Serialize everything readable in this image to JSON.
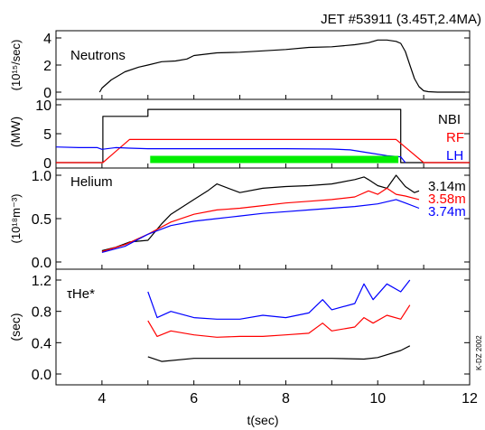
{
  "figure": {
    "title": "JET #53911 (3.45T,2.4MA)",
    "xlabel": "t(sec)",
    "credit": "K-DZ 2002"
  },
  "chart_data": [
    {
      "type": "line",
      "panel": "neutrons",
      "annotation": "Neutrons",
      "ylabel": "(10¹⁵/sec)",
      "xlim": [
        3,
        12
      ],
      "ylim": [
        0,
        4
      ],
      "yticks": [
        0,
        2,
        4
      ],
      "series": [
        {
          "color": "#000000",
          "x": [
            3.95,
            4.0,
            4.2,
            4.5,
            4.8,
            5.0,
            5.3,
            5.6,
            5.85,
            6.0,
            6.5,
            7.0,
            7.5,
            8.0,
            8.5,
            9.0,
            9.5,
            9.8,
            10.0,
            10.2,
            10.4,
            10.5,
            10.6,
            10.7,
            10.8,
            10.9,
            11.0,
            11.1,
            11.3,
            11.6,
            11.9
          ],
          "y": [
            0.0,
            0.3,
            0.9,
            1.5,
            1.85,
            2.0,
            2.25,
            2.3,
            2.45,
            2.7,
            2.9,
            2.95,
            3.05,
            3.15,
            3.3,
            3.35,
            3.5,
            3.65,
            3.85,
            3.85,
            3.75,
            3.6,
            3.0,
            2.0,
            1.0,
            0.4,
            0.1,
            0.03,
            0.0,
            0.0,
            0.0
          ]
        }
      ]
    },
    {
      "type": "line",
      "panel": "power",
      "ylabel": "(MW)",
      "xlim": [
        3,
        12
      ],
      "ylim": [
        0,
        10
      ],
      "yticks": [
        0,
        5,
        10
      ],
      "series": [
        {
          "name": "NBI",
          "color": "#000000",
          "x": [
            3,
            4.02,
            4.02,
            4.5,
            5.0,
            5.0,
            10.5,
            10.5,
            12
          ],
          "y": [
            0,
            0,
            8,
            8,
            8,
            9.2,
            9.2,
            0,
            0
          ]
        },
        {
          "name": "RF",
          "color": "#ff0000",
          "x": [
            3,
            4.02,
            4.6,
            10.4,
            11.0,
            12
          ],
          "y": [
            0,
            0,
            4.0,
            4.0,
            0,
            0
          ]
        },
        {
          "name": "LH",
          "color": "#0000ff",
          "x": [
            3.0,
            3.5,
            3.9,
            4.0,
            4.3,
            4.6,
            5.0,
            6.0,
            7.0,
            8.0,
            9.0,
            9.4,
            9.8,
            10.2,
            10.5,
            10.6
          ],
          "y": [
            2.7,
            2.6,
            2.6,
            2.3,
            2.6,
            2.5,
            2.4,
            2.4,
            2.4,
            2.4,
            2.35,
            2.2,
            1.7,
            1.2,
            1.0,
            0.0
          ]
        },
        {
          "name": "",
          "color": "#00ee00",
          "x": [
            5.05,
            10.45
          ],
          "y": [
            0.55,
            0.55
          ]
        }
      ]
    },
    {
      "type": "line",
      "panel": "helium",
      "annotation": "Helium",
      "ylabel": "(10¹⁸m⁻³)",
      "xlim": [
        3,
        12
      ],
      "ylim": [
        0,
        1.0
      ],
      "yticks": [
        0.0,
        0.5,
        1.0
      ],
      "series": [
        {
          "name": "3.14m",
          "color": "#000000",
          "x": [
            4.0,
            4.3,
            4.6,
            5.0,
            5.3,
            5.5,
            6.0,
            6.3,
            6.5,
            7.0,
            7.5,
            8.0,
            8.5,
            9.0,
            9.5,
            9.7,
            9.8,
            10.0,
            10.2,
            10.4,
            10.6,
            10.8,
            10.9
          ],
          "y": [
            0.13,
            0.17,
            0.23,
            0.25,
            0.44,
            0.55,
            0.72,
            0.82,
            0.9,
            0.8,
            0.85,
            0.87,
            0.88,
            0.9,
            0.95,
            0.98,
            0.95,
            0.88,
            0.85,
            1.0,
            0.87,
            0.8,
            0.82
          ]
        },
        {
          "name": "3.58m",
          "color": "#ff0000",
          "x": [
            4.0,
            4.5,
            5.0,
            5.5,
            6.0,
            6.5,
            7.0,
            7.5,
            8.0,
            8.5,
            9.0,
            9.5,
            9.8,
            10.0,
            10.2,
            10.4,
            10.6,
            10.9
          ],
          "y": [
            0.12,
            0.2,
            0.32,
            0.46,
            0.55,
            0.6,
            0.62,
            0.65,
            0.68,
            0.7,
            0.72,
            0.75,
            0.82,
            0.78,
            0.85,
            0.78,
            0.76,
            0.72
          ]
        },
        {
          "name": "3.74m",
          "color": "#0000ff",
          "x": [
            4.0,
            4.5,
            5.0,
            5.5,
            6.0,
            6.5,
            7.0,
            7.5,
            8.0,
            8.5,
            9.0,
            9.5,
            10.0,
            10.4,
            10.6,
            10.9
          ],
          "y": [
            0.11,
            0.18,
            0.32,
            0.42,
            0.47,
            0.5,
            0.53,
            0.56,
            0.58,
            0.6,
            0.62,
            0.64,
            0.67,
            0.72,
            0.68,
            0.62
          ]
        }
      ]
    },
    {
      "type": "line",
      "panel": "tau",
      "annotation": "τHe*",
      "ylabel": "(sec)",
      "xlim": [
        3,
        12
      ],
      "ylim": [
        0.0,
        1.2
      ],
      "yticks": [
        0.0,
        0.4,
        0.8,
        1.2
      ],
      "xticks": [
        4,
        6,
        8,
        10,
        12
      ],
      "series": [
        {
          "color": "#0000ff",
          "x": [
            5.0,
            5.2,
            5.5,
            6.0,
            6.5,
            7.0,
            7.5,
            8.0,
            8.5,
            8.8,
            9.0,
            9.5,
            9.7,
            9.9,
            10.2,
            10.5,
            10.7
          ],
          "y": [
            1.05,
            0.72,
            0.8,
            0.72,
            0.7,
            0.7,
            0.75,
            0.72,
            0.78,
            0.95,
            0.82,
            0.9,
            1.15,
            0.95,
            1.15,
            1.05,
            1.2
          ]
        },
        {
          "color": "#ff0000",
          "x": [
            5.0,
            5.2,
            5.5,
            6.0,
            6.5,
            7.0,
            7.5,
            8.0,
            8.5,
            8.8,
            9.0,
            9.5,
            9.7,
            9.9,
            10.2,
            10.5,
            10.7
          ],
          "y": [
            0.68,
            0.48,
            0.55,
            0.5,
            0.47,
            0.48,
            0.48,
            0.5,
            0.52,
            0.65,
            0.55,
            0.6,
            0.72,
            0.65,
            0.75,
            0.7,
            0.88
          ]
        },
        {
          "color": "#000000",
          "x": [
            5.0,
            5.3,
            6.0,
            7.0,
            8.0,
            9.0,
            9.7,
            10.0,
            10.5,
            10.7
          ],
          "y": [
            0.22,
            0.16,
            0.2,
            0.2,
            0.2,
            0.2,
            0.19,
            0.21,
            0.3,
            0.36
          ]
        }
      ]
    }
  ]
}
